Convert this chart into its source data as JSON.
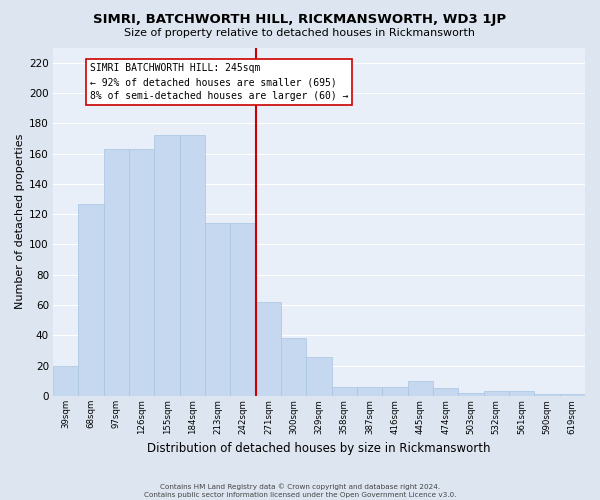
{
  "title": "SIMRI, BATCHWORTH HILL, RICKMANSWORTH, WD3 1JP",
  "subtitle": "Size of property relative to detached houses in Rickmansworth",
  "xlabel": "Distribution of detached houses by size in Rickmansworth",
  "ylabel": "Number of detached properties",
  "bar_color": "#c5d8ef",
  "bar_edge_color": "#a8c4e0",
  "background_color": "#e8eff8",
  "grid_color": "#ffffff",
  "fig_background": "#dde6f0",
  "categories": [
    "39sqm",
    "68sqm",
    "97sqm",
    "126sqm",
    "155sqm",
    "184sqm",
    "213sqm",
    "242sqm",
    "271sqm",
    "300sqm",
    "329sqm",
    "358sqm",
    "387sqm",
    "416sqm",
    "445sqm",
    "474sqm",
    "503sqm",
    "532sqm",
    "561sqm",
    "590sqm",
    "619sqm"
  ],
  "values": [
    20,
    127,
    163,
    163,
    172,
    172,
    114,
    114,
    62,
    38,
    26,
    6,
    6,
    6,
    10,
    5,
    2,
    3,
    3,
    1,
    1
  ],
  "ylim": [
    0,
    230
  ],
  "yticks": [
    0,
    20,
    40,
    60,
    80,
    100,
    120,
    140,
    160,
    180,
    200,
    220
  ],
  "line_color": "#cc0000",
  "annotation_text1": "SIMRI BATCHWORTH HILL: 245sqm",
  "annotation_text2": "← 92% of detached houses are smaller (695)",
  "annotation_text3": "8% of semi-detached houses are larger (60) →",
  "annotation_box_color": "#ffffff",
  "annotation_box_edge": "#cc0000",
  "footer1": "Contains HM Land Registry data © Crown copyright and database right 2024.",
  "footer2": "Contains public sector information licensed under the Open Government Licence v3.0."
}
